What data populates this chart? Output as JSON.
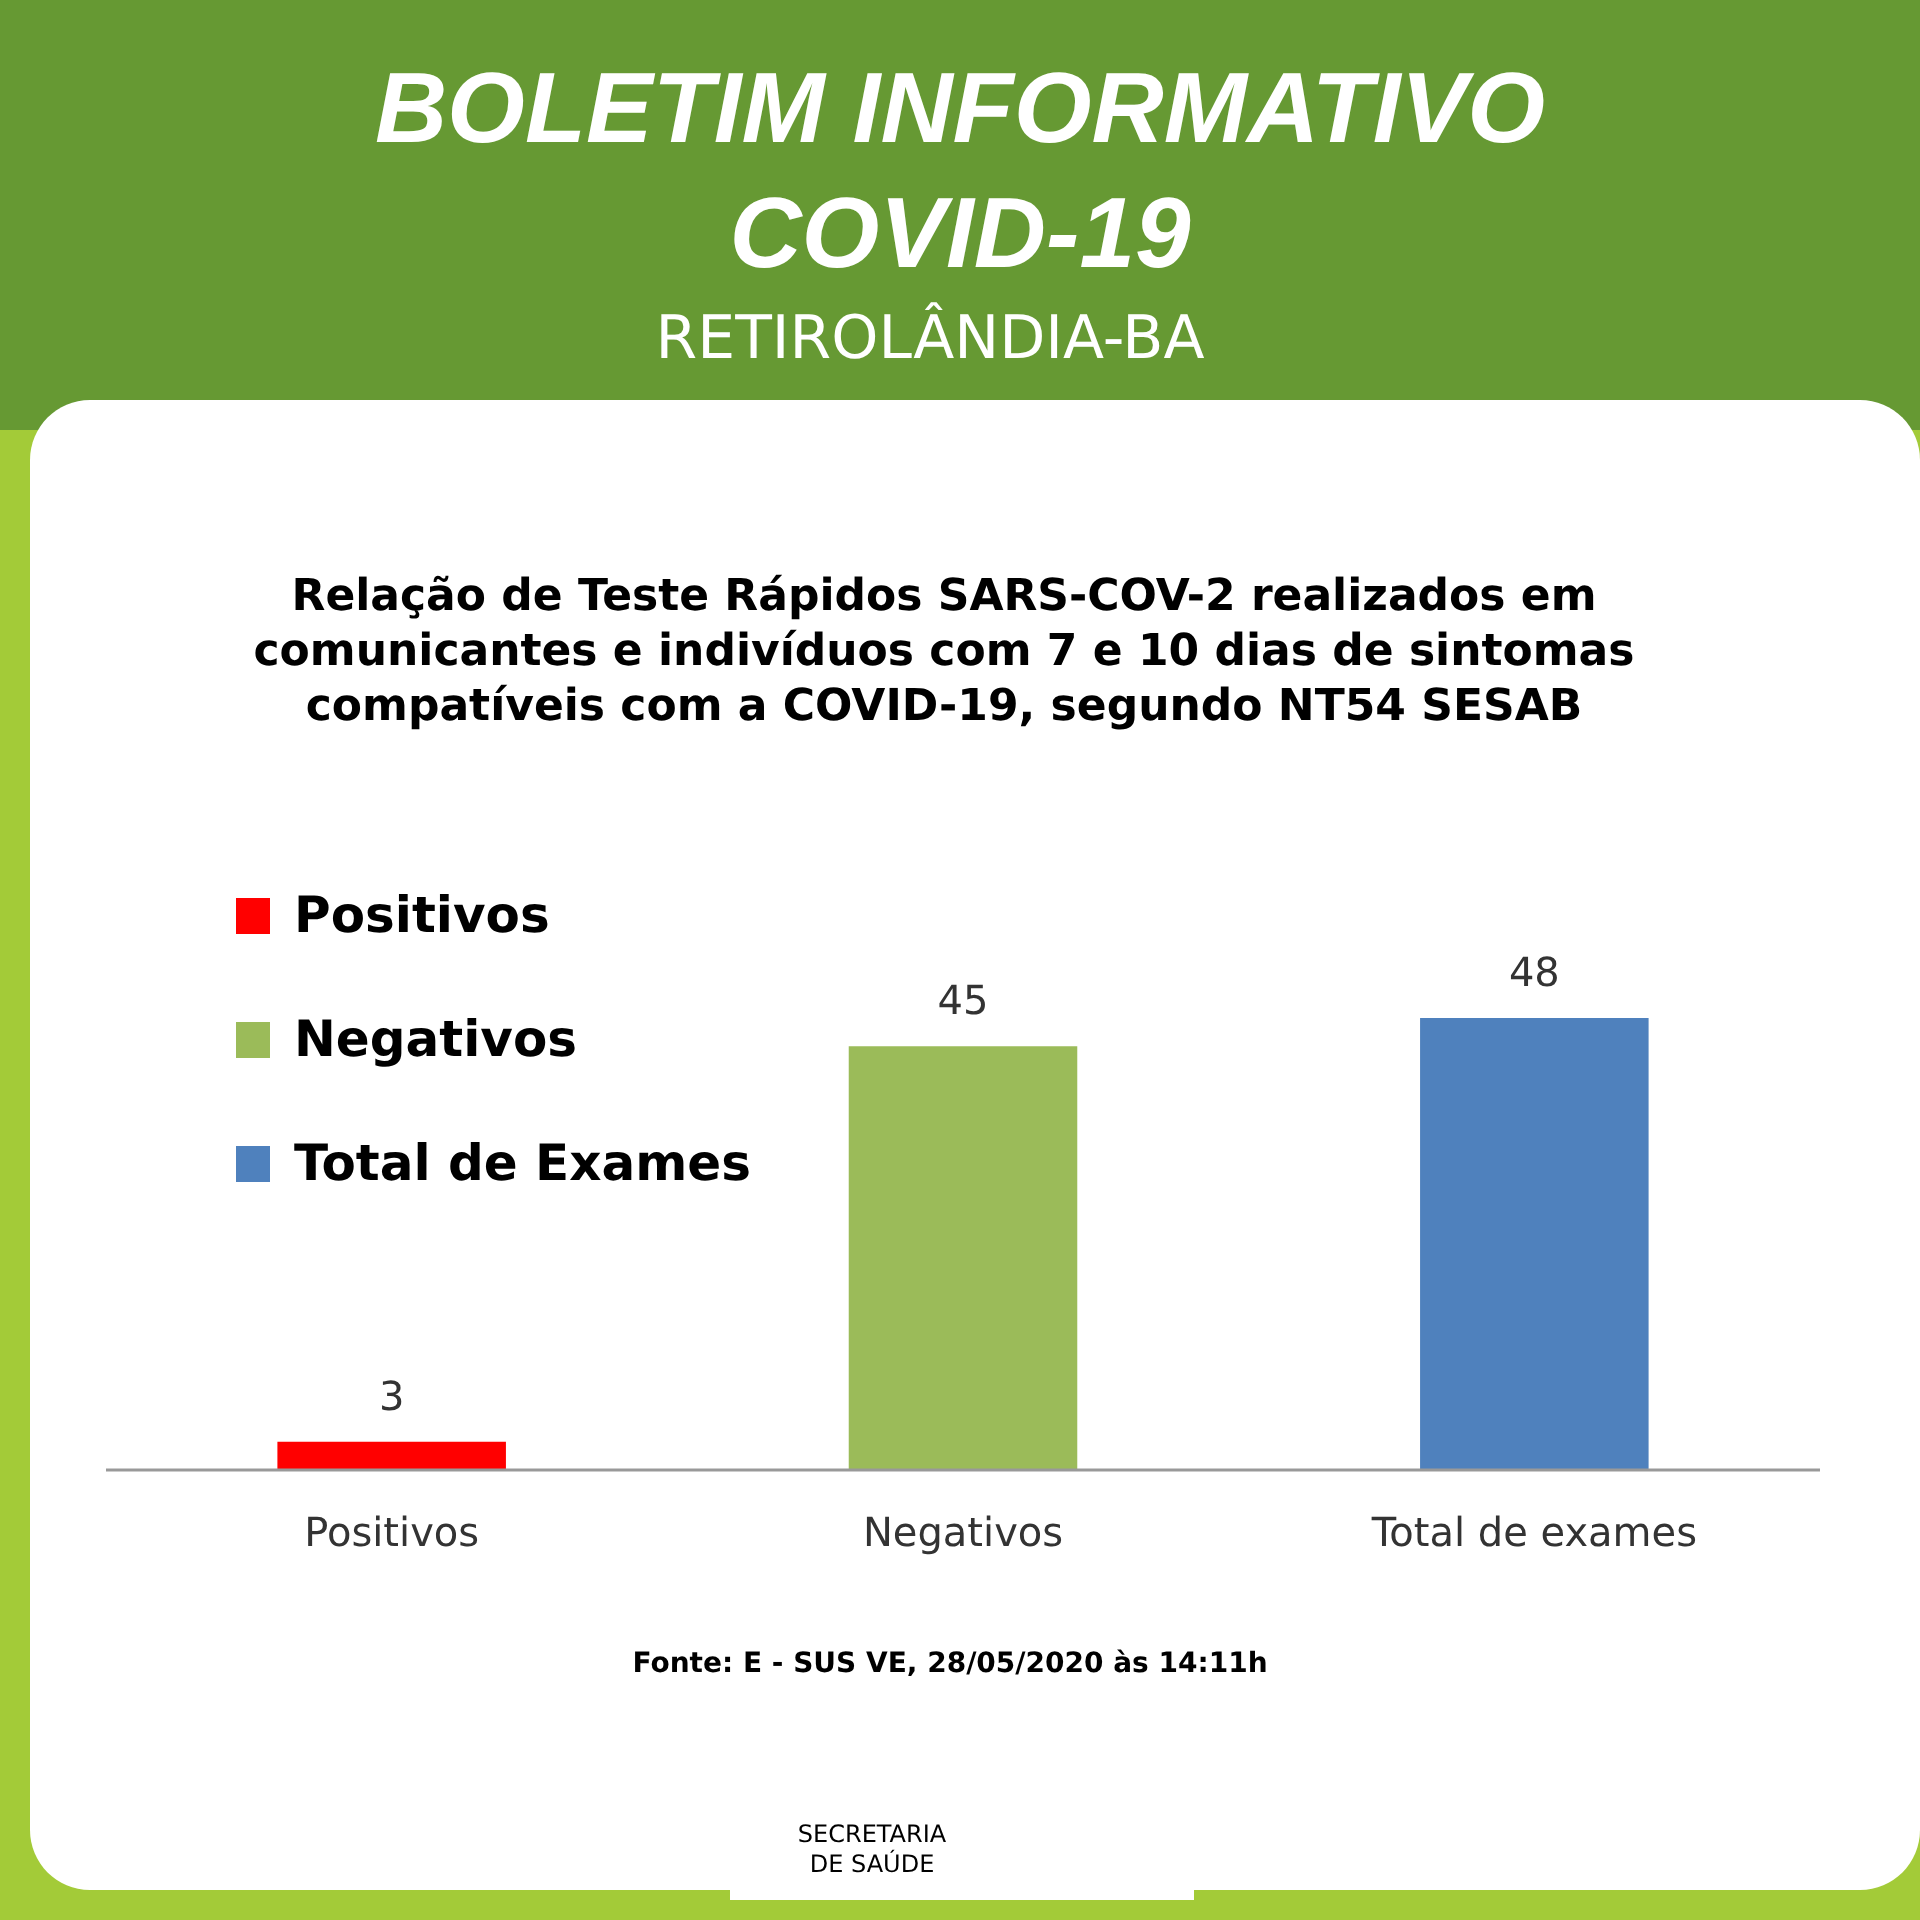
{
  "chart_data": {
    "type": "bar",
    "title": "BOLETIM INFORMATIVO COVID-19",
    "subtitle": "Relação de Teste Rápidos SARS-COV-2 realizados em comunicantes e indivíduos com 7 e 10 dias de sintomas compatíveis com a COVID-19, segundo NT54 SESAB",
    "categories": [
      "Positivos",
      "Negativos",
      "Total de exames"
    ],
    "series": [
      {
        "name": "Positivos",
        "color": "#ff0000",
        "values": [
          3,
          null,
          null
        ]
      },
      {
        "name": "Negativos",
        "color": "#9bbb59",
        "values": [
          null,
          45,
          null
        ]
      },
      {
        "name": "Total de Exames",
        "color": "#4f81bd",
        "values": [
          null,
          null,
          48
        ]
      }
    ],
    "data_labels": true,
    "legend": "top left",
    "annotations": [
      "RETIROLÂNDIA-BA",
      "Fonte: E - SUS VE, 28/05/2020 às 14:11h",
      "SECRETARIA DE SAÚDE"
    ]
  }
}
